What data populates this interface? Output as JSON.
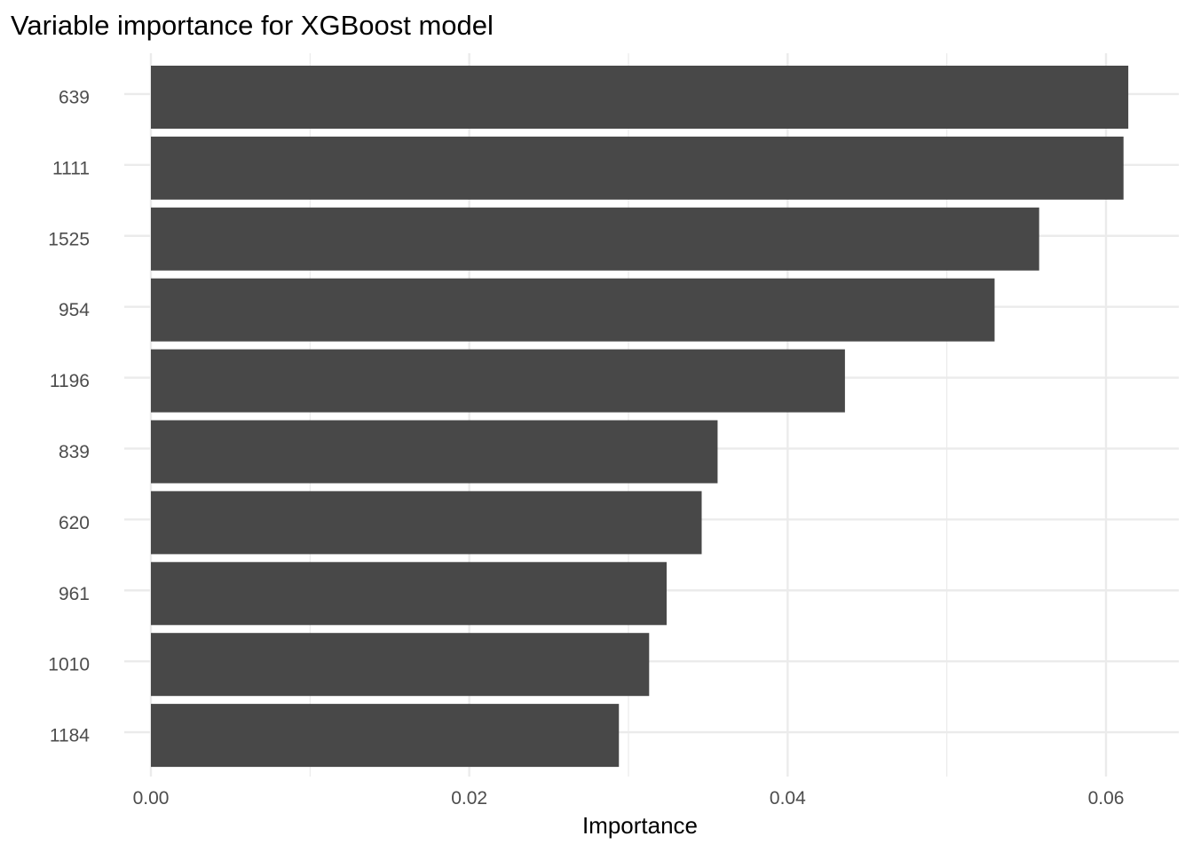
{
  "chart_data": {
    "type": "bar",
    "orientation": "horizontal",
    "title": "Variable importance for XGBoost model",
    "xlabel": "Importance",
    "ylabel": "",
    "categories": [
      "639",
      "1111",
      "1525",
      "954",
      "1196",
      "839",
      "620",
      "961",
      "1010",
      "1184"
    ],
    "values": [
      0.0614,
      0.0611,
      0.0558,
      0.053,
      0.0436,
      0.0356,
      0.0346,
      0.0324,
      0.0313,
      0.0294
    ],
    "xlim": [
      0,
      0.0645
    ],
    "x_ticks": [
      0.0,
      0.02,
      0.04,
      0.06
    ],
    "x_tick_labels": [
      "0.00",
      "0.02",
      "0.04",
      "0.06"
    ],
    "grid": true,
    "legend": "none",
    "colors": {
      "bar": "#484848",
      "grid": "#ebebeb",
      "background": "#ffffff"
    }
  }
}
